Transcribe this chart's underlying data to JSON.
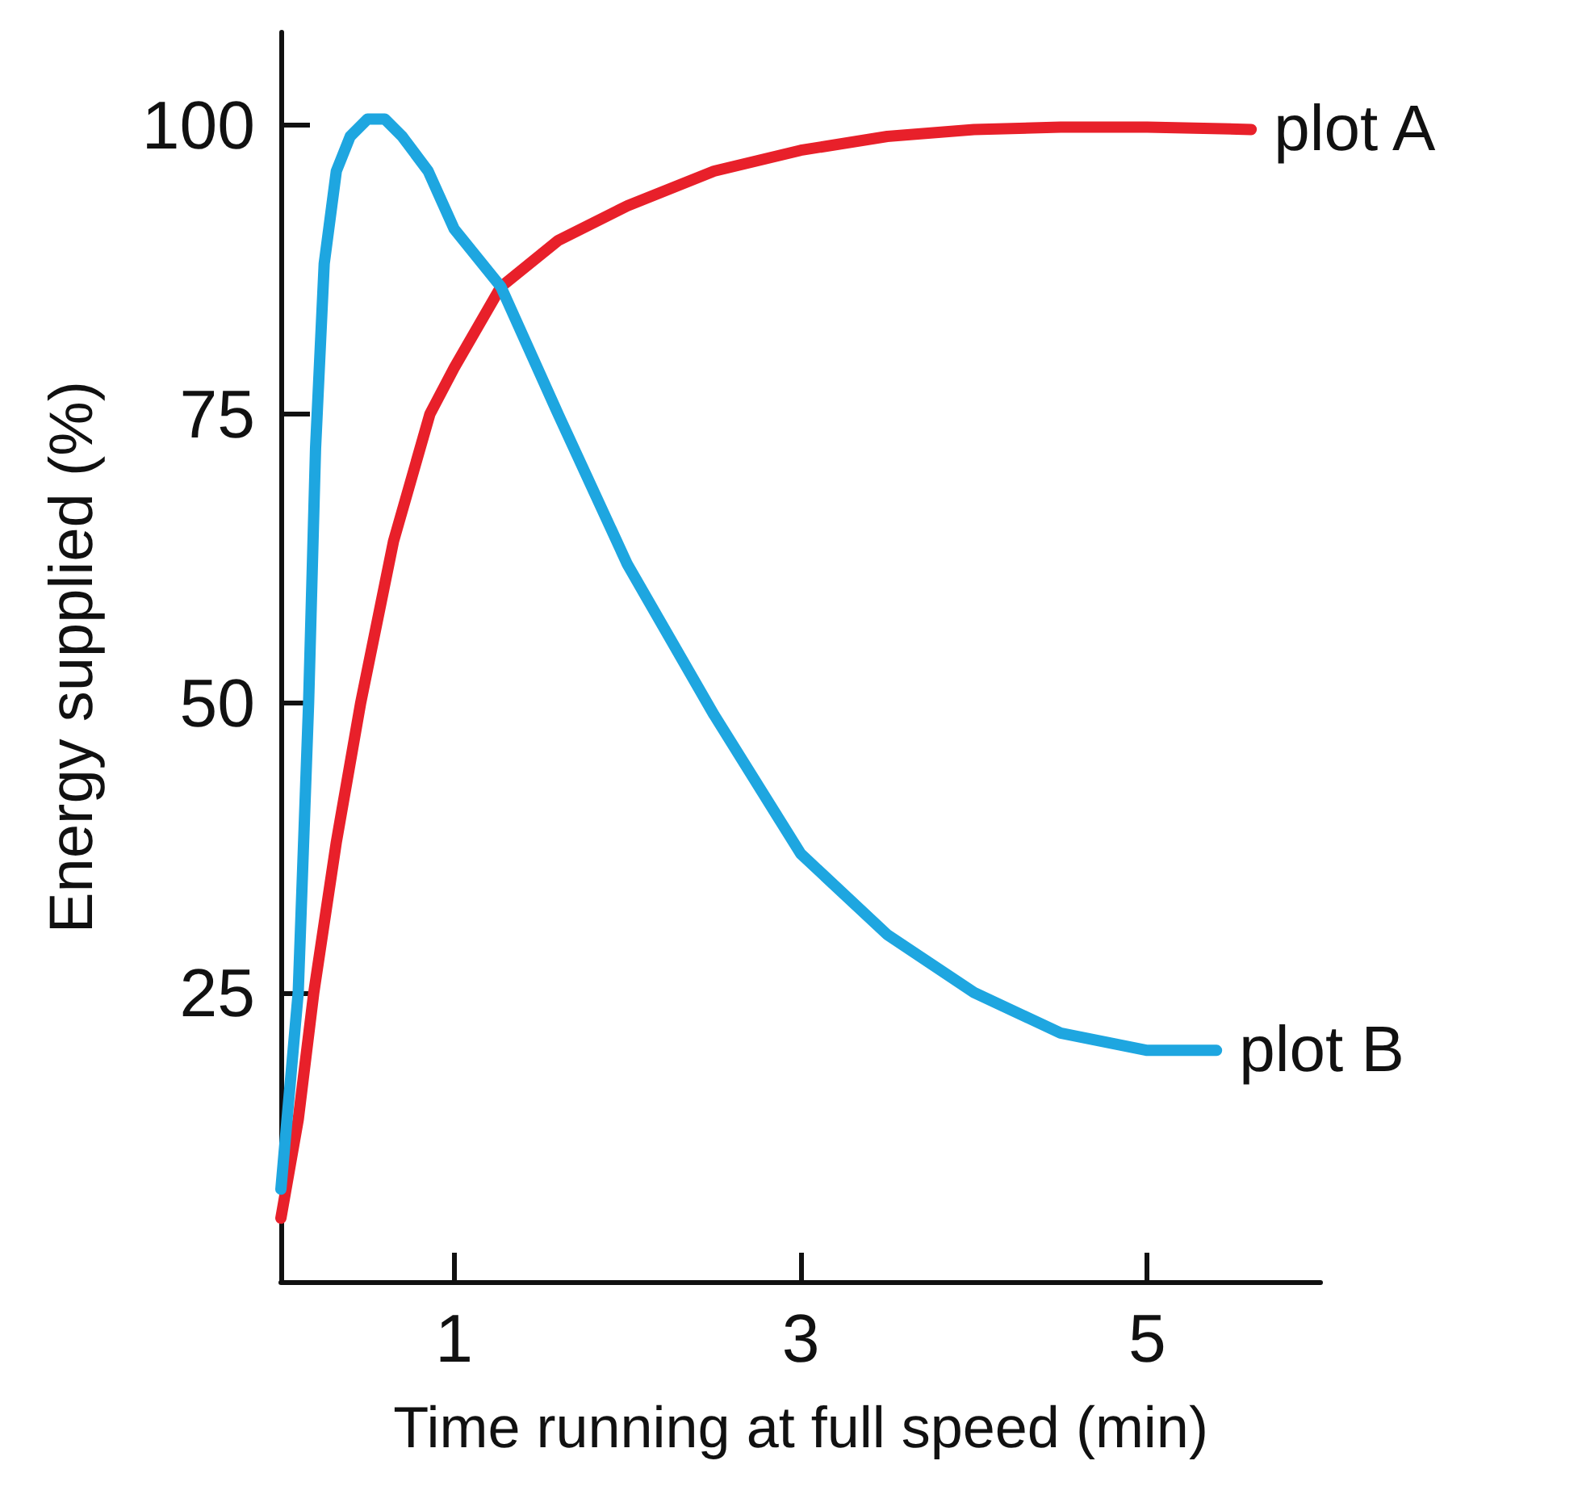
{
  "chart_data": {
    "type": "line",
    "xlabel": "Time running at full speed (min)",
    "ylabel": "Energy supplied (%)",
    "xlim": [
      0,
      6
    ],
    "xticks": [
      1,
      3,
      5
    ],
    "ylim": [
      0,
      108
    ],
    "yticks": [
      25,
      50,
      75,
      100
    ],
    "grid": false,
    "legend": false,
    "marker": "none",
    "line_style": "solid",
    "series": [
      {
        "name": "plot A",
        "color": "#e8202a",
        "x": [
          0,
          0.1,
          0.19,
          0.32,
          0.46,
          0.65,
          0.86,
          1,
          1.27,
          1.6,
          2,
          2.5,
          3,
          3.5,
          4,
          4.5,
          5,
          5.6
        ],
        "values": [
          5.5,
          14,
          25,
          38,
          50,
          64,
          75,
          79,
          86,
          90,
          93,
          96,
          97.8,
          99,
          99.6,
          99.8,
          99.8,
          99.6
        ]
      },
      {
        "name": "plot B",
        "color": "#1ea6e0",
        "x": [
          0,
          0.1,
          0.16,
          0.2,
          0.25,
          0.32,
          0.4,
          0.5,
          0.6,
          0.7,
          0.85,
          1,
          1.27,
          1.6,
          2,
          2.5,
          3,
          3.5,
          4,
          4.5,
          5,
          5.4
        ],
        "values": [
          8,
          25,
          50,
          72,
          88,
          96,
          99,
          100.5,
          100.5,
          99,
          96,
          91,
          86,
          75,
          62,
          49,
          37,
          30,
          25,
          21.5,
          20,
          20
        ]
      }
    ]
  }
}
